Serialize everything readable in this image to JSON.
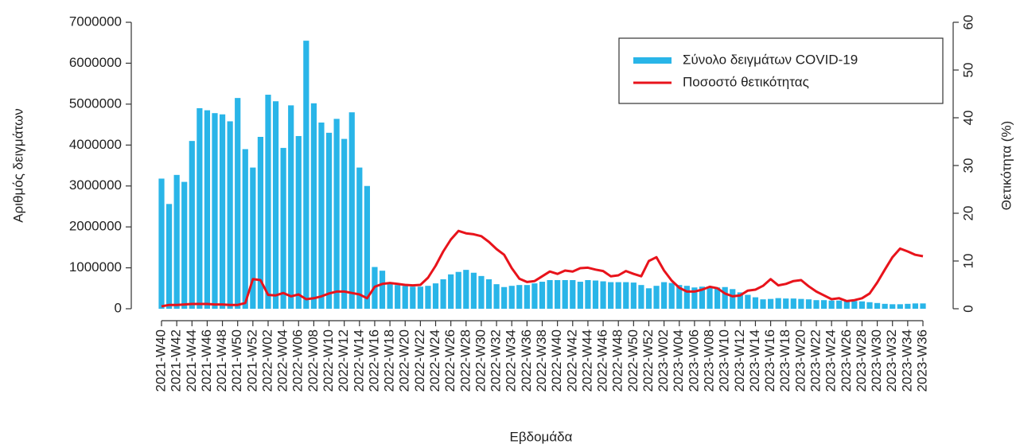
{
  "chart_data": {
    "type": "bar",
    "x_label": "Εβδομάδα",
    "y_label": "Αριθμός δειγμάτων",
    "y2_label": "Θετικότητα (%)",
    "categories": [
      "2021-W40",
      null,
      "2021-W42",
      null,
      "2021-W44",
      null,
      "2021-W46",
      null,
      "2021-W48",
      null,
      "2021-W50",
      null,
      "2021-W52",
      null,
      "2022-W02",
      null,
      "2022-W04",
      null,
      "2022-W06",
      null,
      "2022-W08",
      null,
      "2022-W10",
      null,
      "2022-W12",
      null,
      "2022-W14",
      null,
      "2022-W16",
      null,
      "2022-W18",
      null,
      "2022-W20",
      null,
      "2022-W22",
      null,
      "2022-W24",
      null,
      "2022-W26",
      null,
      "2022-W28",
      null,
      "2022-W30",
      null,
      "2022-W32",
      null,
      "2022-W34",
      null,
      "2022-W36",
      null,
      "2022-W38",
      null,
      "2022-W40",
      null,
      "2022-W42",
      null,
      "2022-W44",
      null,
      "2022-W46",
      null,
      "2022-W48",
      null,
      "2022-W50",
      null,
      "2022-W52",
      null,
      "2023-W02",
      null,
      "2023-W04",
      null,
      "2023-W06",
      null,
      "2023-W08",
      null,
      "2023-W10",
      null,
      "2023-W12",
      null,
      "2023-W14",
      null,
      "2023-W16",
      null,
      "2023-W18",
      null,
      "2023-W20",
      null,
      "2023-W22",
      null,
      "2023-W24",
      null,
      "2023-W26",
      null,
      "2023-W28",
      null,
      "2023-W30",
      null,
      "2023-W32",
      null,
      "2023-W34",
      null,
      "2023-W36"
    ],
    "series": [
      {
        "name": "Σύνολο δειγμάτων COVID-19",
        "type": "bar",
        "color": "#29b5e8",
        "values": [
          3180000,
          2560000,
          3270000,
          3100000,
          4100000,
          4900000,
          4850000,
          4780000,
          4750000,
          4580000,
          5150000,
          3900000,
          3450000,
          4200000,
          5230000,
          5070000,
          3930000,
          4970000,
          4220000,
          6550000,
          5020000,
          4550000,
          4300000,
          4640000,
          4150000,
          4800000,
          3450000,
          3000000,
          1020000,
          930000,
          620000,
          580000,
          560000,
          540000,
          540000,
          560000,
          620000,
          720000,
          840000,
          900000,
          950000,
          880000,
          800000,
          720000,
          600000,
          530000,
          560000,
          580000,
          580000,
          620000,
          660000,
          700000,
          700000,
          700000,
          700000,
          660000,
          700000,
          690000,
          670000,
          650000,
          650000,
          650000,
          640000,
          580000,
          500000,
          560000,
          650000,
          630000,
          580000,
          560000,
          520000,
          540000,
          540000,
          520000,
          530000,
          480000,
          400000,
          340000,
          280000,
          230000,
          240000,
          260000,
          250000,
          250000,
          240000,
          230000,
          210000,
          210000,
          200000,
          200000,
          190000,
          190000,
          180000,
          160000,
          140000,
          120000,
          110000,
          110000,
          120000,
          130000,
          130000
        ]
      },
      {
        "name": "Ποσοστό θετικότητας",
        "type": "line",
        "axis": "y2",
        "color": "#e8131b",
        "values": [
          0.5,
          0.8,
          0.8,
          0.9,
          1.0,
          1.0,
          1.0,
          0.9,
          0.9,
          0.8,
          0.8,
          1.2,
          6.2,
          6.0,
          2.9,
          2.8,
          3.3,
          2.6,
          3.0,
          2.0,
          2.2,
          2.6,
          3.2,
          3.6,
          3.6,
          3.3,
          3.0,
          2.2,
          4.6,
          5.2,
          5.4,
          5.2,
          5.0,
          4.9,
          5.0,
          6.5,
          9.0,
          12.0,
          14.5,
          16.3,
          15.8,
          15.6,
          15.2,
          14.0,
          12.5,
          11.3,
          8.5,
          6.3,
          5.6,
          5.8,
          6.8,
          7.8,
          7.3,
          8.0,
          7.8,
          8.5,
          8.6,
          8.2,
          7.9,
          6.8,
          7.0,
          7.9,
          7.3,
          6.8,
          10.0,
          10.8,
          8.0,
          5.9,
          4.4,
          3.6,
          3.6,
          4.0,
          4.6,
          4.3,
          3.2,
          2.6,
          2.8,
          3.8,
          4.0,
          4.8,
          6.2,
          4.9,
          5.2,
          5.8,
          6.0,
          4.7,
          3.6,
          2.8,
          2.0,
          2.2,
          1.6,
          1.8,
          2.2,
          3.2,
          5.5,
          8.2,
          10.8,
          12.6,
          12.0,
          11.3,
          11.0
        ]
      }
    ],
    "ylim": [
      0,
      7000000
    ],
    "yticks": [
      0,
      1000000,
      2000000,
      3000000,
      4000000,
      5000000,
      6000000,
      7000000
    ],
    "y2lim": [
      0,
      60
    ],
    "y2ticks": [
      0,
      10,
      20,
      30,
      40,
      50,
      60
    ],
    "legend": "topright"
  }
}
